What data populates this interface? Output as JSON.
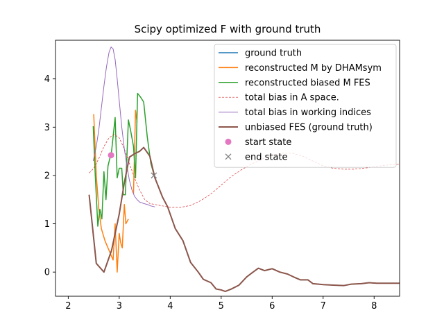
{
  "chart_data": {
    "type": "line",
    "title": "Scipy optimized F with ground truth",
    "xlabel": "",
    "ylabel": "",
    "xlim": [
      1.75,
      8.5
    ],
    "ylim": [
      -0.5,
      4.8
    ],
    "xticks": [
      2,
      3,
      4,
      5,
      6,
      7,
      8
    ],
    "yticks": [
      0,
      1,
      2,
      3,
      4
    ],
    "legend_position": "top-right",
    "series": [
      {
        "name": "ground truth",
        "color": "#1f77b4",
        "style": "solid",
        "width": 1.5,
        "points": [
          [
            2.41,
            1.6
          ],
          [
            2.55,
            0.18
          ],
          [
            2.7,
            0.0
          ],
          [
            2.85,
            0.45
          ],
          [
            3.0,
            1.2
          ],
          [
            3.1,
            1.85
          ],
          [
            3.2,
            2.38
          ],
          [
            3.3,
            2.45
          ],
          [
            3.4,
            2.5
          ],
          [
            3.48,
            2.58
          ],
          [
            3.6,
            2.4
          ],
          [
            3.7,
            1.95
          ],
          [
            3.85,
            1.55
          ],
          [
            3.95,
            1.35
          ],
          [
            4.1,
            0.9
          ],
          [
            4.25,
            0.65
          ],
          [
            4.4,
            0.2
          ],
          [
            4.55,
            0.0
          ],
          [
            4.65,
            -0.15
          ],
          [
            4.8,
            -0.22
          ],
          [
            4.9,
            -0.35
          ],
          [
            5.0,
            -0.37
          ],
          [
            5.08,
            -0.4
          ],
          [
            5.2,
            -0.35
          ],
          [
            5.35,
            -0.27
          ],
          [
            5.5,
            -0.1
          ],
          [
            5.6,
            -0.02
          ],
          [
            5.73,
            0.08
          ],
          [
            5.85,
            0.03
          ],
          [
            6.0,
            0.07
          ],
          [
            6.15,
            0.0
          ],
          [
            6.3,
            -0.04
          ],
          [
            6.42,
            -0.1
          ],
          [
            6.55,
            -0.16
          ],
          [
            6.7,
            -0.16
          ],
          [
            6.8,
            -0.24
          ],
          [
            7.0,
            -0.26
          ],
          [
            7.2,
            -0.27
          ],
          [
            7.4,
            -0.28
          ],
          [
            7.55,
            -0.25
          ],
          [
            7.75,
            -0.24
          ],
          [
            7.9,
            -0.22
          ],
          [
            8.05,
            -0.23
          ],
          [
            8.25,
            -0.23
          ],
          [
            8.5,
            -0.23
          ]
        ]
      },
      {
        "name": "reconstructed M by DHAMsym",
        "color": "#ff7f0e",
        "style": "solid",
        "width": 1.5,
        "points": [
          [
            2.5,
            3.27
          ],
          [
            2.55,
            2.0
          ],
          [
            2.6,
            1.3
          ],
          [
            2.65,
            0.9
          ],
          [
            2.72,
            0.65
          ],
          [
            2.8,
            0.45
          ],
          [
            2.88,
            0.25
          ],
          [
            2.92,
            1.0
          ],
          [
            2.96,
            0.0
          ],
          [
            3.0,
            0.8
          ],
          [
            3.03,
            0.6
          ],
          [
            3.06,
            0.5
          ],
          [
            3.1,
            1.4
          ],
          [
            3.13,
            1.0
          ],
          [
            3.18,
            1.1
          ]
        ],
        "extra_segments": [
          [
            [
              3.28,
              1.62
            ],
            [
              3.32,
              3.35
            ],
            [
              3.35,
              3.1
            ]
          ]
        ]
      },
      {
        "name": "reconstructed biased M FES",
        "color": "#2ca02c",
        "style": "solid",
        "width": 1.5,
        "points": [
          [
            2.49,
            3.02
          ],
          [
            2.53,
            2.0
          ],
          [
            2.58,
            0.95
          ],
          [
            2.62,
            1.3
          ],
          [
            2.66,
            1.1
          ],
          [
            2.7,
            2.08
          ],
          [
            2.74,
            1.5
          ],
          [
            2.78,
            2.2
          ],
          [
            2.85,
            2.5
          ],
          [
            2.92,
            3.2
          ],
          [
            2.96,
            1.95
          ],
          [
            3.0,
            2.15
          ],
          [
            3.05,
            2.15
          ],
          [
            3.08,
            1.6
          ],
          [
            3.12,
            1.6
          ],
          [
            3.18,
            3.15
          ],
          [
            3.22,
            2.95
          ],
          [
            3.28,
            2.6
          ],
          [
            3.32,
            1.95
          ],
          [
            3.36,
            3.7
          ],
          [
            3.42,
            3.62
          ],
          [
            3.48,
            3.52
          ],
          [
            3.55,
            2.8
          ],
          [
            3.62,
            2.25
          ],
          [
            3.7,
            1.95
          ]
        ]
      },
      {
        "name": "total bias in A space.",
        "color": "#d62728",
        "style": "dashed",
        "width": 0.7,
        "points": [
          [
            2.41,
            2.05
          ],
          [
            2.5,
            2.15
          ],
          [
            2.6,
            2.35
          ],
          [
            2.7,
            2.6
          ],
          [
            2.8,
            2.78
          ],
          [
            2.9,
            2.85
          ],
          [
            3.0,
            2.78
          ],
          [
            3.1,
            2.55
          ],
          [
            3.2,
            2.25
          ],
          [
            3.3,
            1.95
          ],
          [
            3.4,
            1.7
          ],
          [
            3.5,
            1.5
          ],
          [
            3.6,
            1.42
          ],
          [
            3.7,
            1.4
          ],
          [
            3.85,
            1.37
          ],
          [
            4.0,
            1.34
          ],
          [
            4.2,
            1.34
          ],
          [
            4.4,
            1.38
          ],
          [
            4.6,
            1.48
          ],
          [
            4.8,
            1.62
          ],
          [
            5.0,
            1.8
          ],
          [
            5.2,
            1.98
          ],
          [
            5.4,
            2.12
          ],
          [
            5.6,
            2.24
          ],
          [
            5.8,
            2.34
          ],
          [
            6.0,
            2.42
          ],
          [
            6.2,
            2.46
          ],
          [
            6.4,
            2.46
          ],
          [
            6.6,
            2.4
          ],
          [
            6.8,
            2.3
          ],
          [
            7.0,
            2.2
          ],
          [
            7.2,
            2.15
          ],
          [
            7.4,
            2.13
          ],
          [
            7.6,
            2.13
          ],
          [
            7.8,
            2.15
          ],
          [
            8.0,
            2.18
          ],
          [
            8.2,
            2.21
          ],
          [
            8.4,
            2.23
          ],
          [
            8.5,
            2.23
          ]
        ]
      },
      {
        "name": "total bias in working indices",
        "color": "#9467bd",
        "style": "solid",
        "width": 1.0,
        "points": [
          [
            2.49,
            2.3
          ],
          [
            2.55,
            2.6
          ],
          [
            2.6,
            2.95
          ],
          [
            2.65,
            3.4
          ],
          [
            2.7,
            3.85
          ],
          [
            2.75,
            4.25
          ],
          [
            2.8,
            4.55
          ],
          [
            2.84,
            4.66
          ],
          [
            2.88,
            4.62
          ],
          [
            2.92,
            4.4
          ],
          [
            2.96,
            4.0
          ],
          [
            3.0,
            3.55
          ],
          [
            3.05,
            3.0
          ],
          [
            3.1,
            2.55
          ],
          [
            3.15,
            2.2
          ],
          [
            3.2,
            1.9
          ],
          [
            3.25,
            1.7
          ],
          [
            3.3,
            1.57
          ],
          [
            3.35,
            1.5
          ],
          [
            3.4,
            1.45
          ],
          [
            3.48,
            1.42
          ],
          [
            3.55,
            1.4
          ],
          [
            3.62,
            1.37
          ],
          [
            3.7,
            1.35
          ]
        ]
      },
      {
        "name": "unbiased FES (ground truth)",
        "color": "#8c564b",
        "style": "solid",
        "width": 2.0,
        "points": [
          [
            2.41,
            1.6
          ],
          [
            2.55,
            0.18
          ],
          [
            2.7,
            0.0
          ],
          [
            2.85,
            0.45
          ],
          [
            3.0,
            1.2
          ],
          [
            3.1,
            1.85
          ],
          [
            3.2,
            2.38
          ],
          [
            3.3,
            2.45
          ],
          [
            3.4,
            2.5
          ],
          [
            3.48,
            2.58
          ],
          [
            3.6,
            2.4
          ],
          [
            3.7,
            1.95
          ],
          [
            3.85,
            1.55
          ],
          [
            3.95,
            1.35
          ],
          [
            4.1,
            0.9
          ],
          [
            4.25,
            0.65
          ],
          [
            4.4,
            0.2
          ],
          [
            4.55,
            0.0
          ],
          [
            4.65,
            -0.15
          ],
          [
            4.8,
            -0.22
          ],
          [
            4.9,
            -0.35
          ],
          [
            5.0,
            -0.37
          ],
          [
            5.08,
            -0.4
          ],
          [
            5.2,
            -0.35
          ],
          [
            5.35,
            -0.27
          ],
          [
            5.5,
            -0.1
          ],
          [
            5.6,
            -0.02
          ],
          [
            5.73,
            0.08
          ],
          [
            5.85,
            0.03
          ],
          [
            6.0,
            0.07
          ],
          [
            6.15,
            0.0
          ],
          [
            6.3,
            -0.04
          ],
          [
            6.42,
            -0.1
          ],
          [
            6.55,
            -0.16
          ],
          [
            6.7,
            -0.16
          ],
          [
            6.8,
            -0.24
          ],
          [
            7.0,
            -0.26
          ],
          [
            7.2,
            -0.27
          ],
          [
            7.4,
            -0.28
          ],
          [
            7.55,
            -0.25
          ],
          [
            7.75,
            -0.24
          ],
          [
            7.9,
            -0.22
          ],
          [
            8.05,
            -0.23
          ],
          [
            8.25,
            -0.23
          ],
          [
            8.5,
            -0.23
          ]
        ]
      }
    ],
    "markers": [
      {
        "name": "start state",
        "color": "#e377c2",
        "shape": "circle",
        "x": 2.84,
        "y": 2.42
      },
      {
        "name": "end state",
        "color": "#7f7f7f",
        "shape": "x",
        "x": 3.68,
        "y": 2.0
      }
    ]
  }
}
